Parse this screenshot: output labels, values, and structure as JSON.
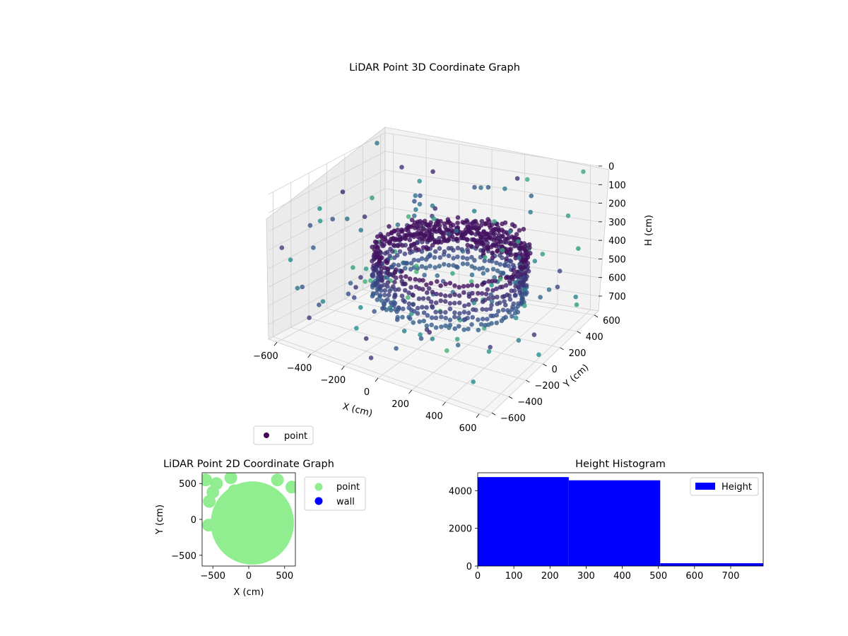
{
  "colors": {
    "point_2d": "#90ee90",
    "wall_2d": "#0000ff",
    "hist_bar": "#0000ff",
    "legend_point_3d": "#440154",
    "scatter_low": "#440154",
    "scatter_mid": "#3b528b",
    "scatter_high": "#5ec962"
  },
  "chart_data": [
    {
      "type": "scatter",
      "projection": "3d",
      "title": "LiDAR Point 3D Coordinate Graph",
      "xlabel": "X (cm)",
      "ylabel": "Y (cm)",
      "zlabel": "H (cm)",
      "x_ticks": [
        "−600",
        "−400",
        "−200",
        "0",
        "200",
        "400",
        "600"
      ],
      "y_ticks": [
        "−600",
        "−400",
        "−200",
        "0",
        "200",
        "400",
        "600"
      ],
      "z_ticks": [
        "0",
        "100",
        "200",
        "300",
        "400",
        "500",
        "600",
        "700"
      ],
      "xlim": [
        -650,
        650
      ],
      "ylim": [
        -650,
        650
      ],
      "zlim": [
        0,
        780
      ],
      "z_inverted": true,
      "colormap": "viridis",
      "grid": true,
      "legend": {
        "placement": "lower-left",
        "entries": [
          "point"
        ]
      },
      "series": [
        {
          "name": "point",
          "description_points": [
            {
              "x": -600,
              "y": -600,
              "z": 150
            },
            {
              "x": -400,
              "y": -500,
              "z": 100
            },
            {
              "x": 600,
              "y": 600,
              "z": 100
            },
            {
              "x": 500,
              "y": 550,
              "z": 80
            },
            {
              "x": -550,
              "y": 200,
              "z": 60
            },
            {
              "x": 0,
              "y": 600,
              "z": 20
            }
          ]
        }
      ]
    },
    {
      "type": "scatter",
      "title": "LiDAR Point 2D Coordinate Graph",
      "xlabel": "X (cm)",
      "ylabel": "Y (cm)",
      "x_ticks": [
        "−500",
        "0",
        "500"
      ],
      "y_ticks": [
        "−500",
        "0",
        "500"
      ],
      "xlim": [
        -650,
        650
      ],
      "ylim": [
        -650,
        650
      ],
      "legend": {
        "placement": "outside-right",
        "entries": [
          "point",
          "wall"
        ]
      },
      "series": [
        {
          "name": "point",
          "shape": "filled-disc-region",
          "center": [
            50,
            -50
          ],
          "radius": 580
        },
        {
          "name": "wall",
          "values": []
        }
      ]
    },
    {
      "type": "bar",
      "subtype": "histogram",
      "title": "Height Histogram",
      "xlabel": "",
      "ylabel": "",
      "x_ticks": [
        "0",
        "100",
        "200",
        "300",
        "400",
        "500",
        "600",
        "700"
      ],
      "y_ticks": [
        "0",
        "2000",
        "4000"
      ],
      "xlim": [
        0,
        790
      ],
      "ylim": [
        0,
        4950
      ],
      "legend": {
        "placement": "top-right",
        "entries": [
          "Height"
        ]
      },
      "series": [
        {
          "name": "Height",
          "bins": [
            [
              0,
              252
            ],
            [
              252,
              505
            ],
            [
              505,
              790
            ]
          ],
          "values": [
            4720,
            4550,
            150
          ]
        }
      ]
    }
  ]
}
